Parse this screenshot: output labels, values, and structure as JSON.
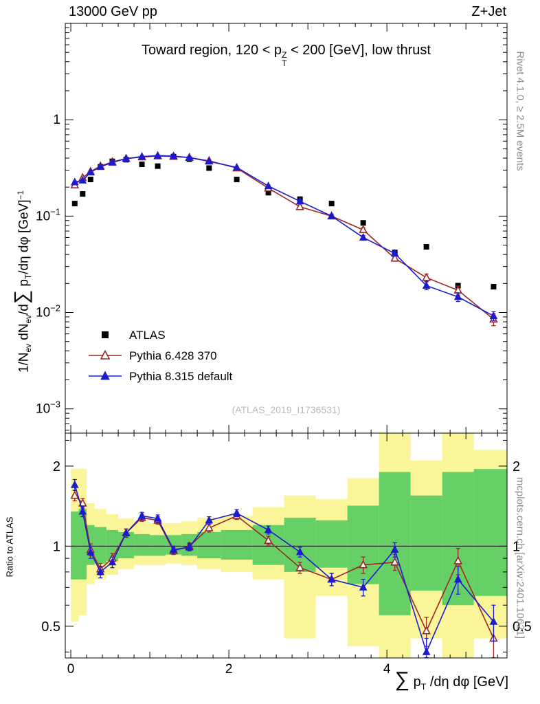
{
  "header": {
    "left": "13000 GeV pp",
    "right": "Z+Jet"
  },
  "side_notes": {
    "top": "Rivet 4.1.0, ≥ 2.5M events",
    "bottom": "mcplots.cern.ch [arXiv:2401.10621]"
  },
  "watermark": "(ATLAS_2019_I1736531)",
  "labels": {
    "panel_title": [
      {
        "t": "Toward region, 120 < p"
      },
      {
        "t": "Z|T",
        "m": "stack"
      },
      {
        "t": " < 200 [GeV], low thrust"
      }
    ],
    "main_ylabel": [
      {
        "t": "1/N"
      },
      {
        "t": "ev",
        "m": "sub"
      },
      {
        "t": " dN"
      },
      {
        "t": "ev",
        "m": "sub"
      },
      {
        "t": "/d"
      },
      {
        "t": "∑",
        "m": "sum"
      },
      {
        "t": " p"
      },
      {
        "t": "T",
        "m": "sub"
      },
      {
        "t": "/dη dφ  [GeV]"
      },
      {
        "t": "−1",
        "m": "sup"
      }
    ],
    "ratio_ylabel": "Ratio to ATLAS",
    "xlabel": [
      {
        "t": "∑",
        "m": "sum"
      },
      {
        "t": " p"
      },
      {
        "t": "T",
        "m": "sub"
      },
      {
        "t": " /dη dφ [GeV]"
      }
    ]
  },
  "chart_data": {
    "type": "line",
    "xlim": [
      -0.07,
      5.52
    ],
    "xticks": [
      0,
      2,
      4
    ],
    "x": [
      0.05,
      0.15,
      0.25,
      0.375,
      0.525,
      0.7,
      0.9,
      1.1,
      1.3,
      1.5,
      1.75,
      2.1,
      2.5,
      2.9,
      3.3,
      3.7,
      4.1,
      4.5,
      4.9,
      5.35
    ],
    "main_panel": {
      "yscale": "log",
      "ylim": [
        0.00056,
        10
      ],
      "yticks": [
        0.001,
        0.01,
        0.1,
        1
      ],
      "series": [
        {
          "name": "ATLAS",
          "marker": "square",
          "color": "#000000",
          "line": false,
          "values": [
            0.135,
            0.17,
            0.24,
            0.325,
            0.37,
            0.385,
            0.345,
            0.33,
            0.415,
            0.39,
            0.315,
            0.24,
            0.175,
            0.15,
            0.135,
            0.085,
            0.042,
            0.048,
            0.019,
            0.0185
          ]
        },
        {
          "name": "Pythia 6.428 370",
          "marker": "triangle-open",
          "color": "#9c2626",
          "line": true,
          "values": [
            0.21,
            0.25,
            0.29,
            0.33,
            0.365,
            0.395,
            0.41,
            0.42,
            0.415,
            0.405,
            0.375,
            0.315,
            0.195,
            0.125,
            0.1,
            0.072,
            0.0365,
            0.023,
            0.017,
            0.0085
          ],
          "yerr": [
            0.006,
            0.006,
            0.006,
            0.006,
            0.006,
            0.006,
            0.006,
            0.006,
            0.006,
            0.006,
            0.006,
            0.006,
            0.005,
            0.005,
            0.004,
            0.004,
            0.0025,
            0.002,
            0.0018,
            0.0012
          ]
        },
        {
          "name": "Pythia 8.315 default",
          "marker": "triangle-filled",
          "color": "#1c1cce",
          "line": true,
          "values": [
            0.225,
            0.235,
            0.285,
            0.325,
            0.36,
            0.395,
            0.415,
            0.425,
            0.42,
            0.405,
            0.37,
            0.32,
            0.205,
            0.1425,
            0.1,
            0.06,
            0.041,
            0.019,
            0.0145,
            0.0092
          ],
          "yerr": [
            0.006,
            0.006,
            0.006,
            0.006,
            0.006,
            0.006,
            0.006,
            0.006,
            0.006,
            0.006,
            0.006,
            0.006,
            0.005,
            0.005,
            0.004,
            0.003,
            0.0025,
            0.0018,
            0.0015,
            0.001
          ]
        }
      ]
    },
    "ratio_panel": {
      "yscale": "log",
      "ylim": [
        0.38,
        2.66
      ],
      "yticks": [
        0.5,
        1,
        2
      ],
      "reference_line": 1,
      "bands": {
        "yellow_color": "#f9f598",
        "green_color": "#66d066",
        "edges": [
          0,
          0.1,
          0.2,
          0.3,
          0.45,
          0.6,
          0.8,
          1.0,
          1.2,
          1.4,
          1.6,
          1.9,
          2.3,
          2.7,
          3.1,
          3.5,
          3.9,
          4.3,
          4.7,
          5.1,
          5.6
        ],
        "yellow_lo": [
          0.52,
          0.55,
          0.72,
          0.75,
          0.78,
          0.82,
          0.85,
          0.85,
          0.86,
          0.85,
          0.82,
          0.8,
          0.75,
          0.45,
          0.65,
          0.42,
          0.35,
          0.45,
          0.38,
          0.45
        ],
        "yellow_hi": [
          1.95,
          1.95,
          1.45,
          1.38,
          1.32,
          1.27,
          1.24,
          1.22,
          1.22,
          1.24,
          1.28,
          1.3,
          1.4,
          1.55,
          1.5,
          1.8,
          2.66,
          2.1,
          2.66,
          2.3
        ],
        "green_lo": [
          0.75,
          0.75,
          0.85,
          0.86,
          0.88,
          0.9,
          0.92,
          0.92,
          0.93,
          0.92,
          0.9,
          0.89,
          0.85,
          0.8,
          0.83,
          0.72,
          0.55,
          0.68,
          0.6,
          0.65
        ],
        "green_hi": [
          1.35,
          1.38,
          1.2,
          1.18,
          1.15,
          1.13,
          1.11,
          1.1,
          1.1,
          1.11,
          1.13,
          1.15,
          1.2,
          1.28,
          1.25,
          1.42,
          1.9,
          1.55,
          1.9,
          1.95
        ]
      },
      "series": [
        {
          "name": "Pythia 6.428 370",
          "marker": "triangle-open",
          "color": "#9c2626",
          "values": [
            1.55,
            1.45,
            0.97,
            0.82,
            0.9,
            1.12,
            1.28,
            1.25,
            0.96,
            1.0,
            1.17,
            1.3,
            1.05,
            0.83,
            0.75,
            0.85,
            0.87,
            0.48,
            0.88,
            0.45
          ],
          "yerr": [
            0.07,
            0.06,
            0.05,
            0.04,
            0.04,
            0.04,
            0.04,
            0.04,
            0.03,
            0.03,
            0.04,
            0.04,
            0.04,
            0.04,
            0.04,
            0.06,
            0.06,
            0.06,
            0.1,
            0.07
          ]
        },
        {
          "name": "Pythia 8.315 default",
          "marker": "triangle-filled",
          "color": "#1c1cce",
          "values": [
            1.7,
            1.35,
            0.95,
            0.8,
            0.87,
            1.12,
            1.3,
            1.27,
            0.97,
            0.99,
            1.25,
            1.33,
            1.15,
            0.95,
            0.75,
            0.7,
            0.97,
            0.4,
            0.75,
            0.52
          ],
          "yerr": [
            0.08,
            0.06,
            0.05,
            0.04,
            0.04,
            0.04,
            0.04,
            0.04,
            0.03,
            0.03,
            0.04,
            0.04,
            0.04,
            0.04,
            0.04,
            0.05,
            0.06,
            0.05,
            0.09,
            0.08
          ]
        }
      ]
    }
  }
}
